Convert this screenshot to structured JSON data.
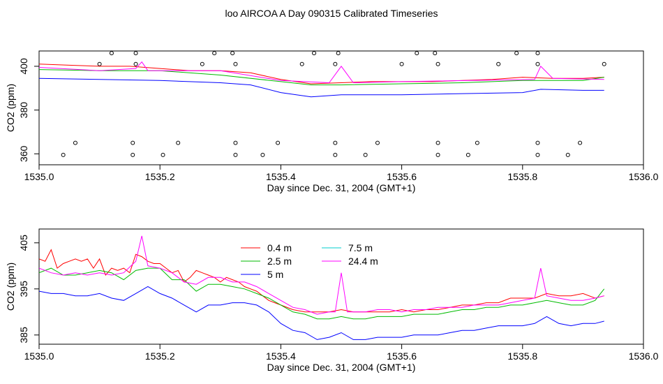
{
  "title": "loo AIRCOA A  Day 090315  Calibrated Timeseries",
  "colors": {
    "0.4 m": "#ff0000",
    "2.5 m": "#00bb00",
    "5 m": "#0000ff",
    "7.5 m": "#00cccc",
    "24.4 m": "#ff00ff",
    "points": "#000000"
  },
  "chart_data": [
    {
      "type": "line",
      "title": "loo AIRCOA A  Day 090315  Calibrated Timeseries",
      "xlabel": "Day since Dec. 31, 2004 (GMT+1)",
      "ylabel": "CO2 (ppm)",
      "xlim": [
        1535.0,
        1536.0
      ],
      "ylim": [
        355,
        407
      ],
      "xticks": [
        "1535.0",
        "1535.2",
        "1535.4",
        "1535.6",
        "1535.8",
        "1536.0"
      ],
      "yticks": [
        "360",
        "380",
        "400"
      ],
      "grid": false,
      "series": [
        {
          "name": "0.4 m",
          "color": "#ff0000",
          "x": [
            1535.0,
            1535.05,
            1535.1,
            1535.15,
            1535.2,
            1535.25,
            1535.3,
            1535.35,
            1535.4,
            1535.45,
            1535.5,
            1535.55,
            1535.6,
            1535.65,
            1535.7,
            1535.75,
            1535.8,
            1535.85,
            1535.9,
            1535.935
          ],
          "y": [
            401,
            400.5,
            400,
            400,
            399,
            398,
            398,
            397,
            394,
            392,
            392.5,
            393,
            393,
            393,
            393.5,
            394,
            395,
            394.5,
            394.5,
            395
          ]
        },
        {
          "name": "2.5 m",
          "color": "#00bb00",
          "x": [
            1535.0,
            1535.1,
            1535.2,
            1535.3,
            1535.4,
            1535.45,
            1535.5,
            1535.6,
            1535.7,
            1535.8,
            1535.9,
            1535.935
          ],
          "y": [
            398.5,
            398,
            398,
            396,
            393,
            391.5,
            391.5,
            392,
            392.5,
            393.5,
            393.5,
            395
          ]
        },
        {
          "name": "24.4 m",
          "color": "#ff00ff",
          "x": [
            1535.0,
            1535.1,
            1535.16,
            1535.17,
            1535.18,
            1535.3,
            1535.4,
            1535.48,
            1535.5,
            1535.52,
            1535.6,
            1535.82,
            1535.83,
            1535.85,
            1535.935
          ],
          "y": [
            399.5,
            398,
            399,
            402,
            398,
            398,
            393.5,
            392.5,
            400,
            392.5,
            393,
            394,
            400,
            394.5,
            394
          ]
        },
        {
          "name": "5 m",
          "color": "#0000ff",
          "x": [
            1535.0,
            1535.1,
            1535.2,
            1535.3,
            1535.35,
            1535.4,
            1535.45,
            1535.5,
            1535.6,
            1535.7,
            1535.8,
            1535.83,
            1535.9,
            1535.935
          ],
          "y": [
            394.5,
            394,
            393.5,
            392.5,
            391.5,
            388,
            386,
            387,
            387,
            387.5,
            388,
            389.5,
            389,
            389
          ]
        }
      ],
      "scatter_points": {
        "color": "#000000",
        "x": [
          1535.12,
          1535.16,
          1535.29,
          1535.32,
          1535.455,
          1535.495,
          1535.625,
          1535.655,
          1535.79,
          1535.825,
          1535.1,
          1535.16,
          1535.27,
          1535.325,
          1535.435,
          1535.49,
          1535.6,
          1535.66,
          1535.76,
          1535.825,
          1535.935,
          1535.06,
          1535.155,
          1535.23,
          1535.325,
          1535.395,
          1535.49,
          1535.56,
          1535.66,
          1535.725,
          1535.825,
          1535.895,
          1535.04,
          1535.155,
          1535.205,
          1535.325,
          1535.37,
          1535.49,
          1535.54,
          1535.66,
          1535.71,
          1535.825,
          1535.875
        ],
        "y": [
          406,
          406,
          406,
          406,
          406,
          406,
          406,
          406,
          406,
          406,
          401,
          401,
          401,
          401,
          401,
          401,
          401,
          401,
          401,
          401,
          401,
          365,
          365,
          365,
          365,
          365,
          365,
          365,
          365,
          365,
          365,
          365,
          359.5,
          359.5,
          359.5,
          359.5,
          359.5,
          359.5,
          359.5,
          359.5,
          359.5,
          359.5,
          359.5
        ]
      }
    },
    {
      "type": "line",
      "xlabel": "Day since Dec. 31, 2004 (GMT+1)",
      "ylabel": "CO2 (ppm)",
      "xlim": [
        1535.0,
        1536.0
      ],
      "ylim": [
        383,
        408
      ],
      "xticks": [
        "1535.0",
        "1535.2",
        "1535.4",
        "1535.6",
        "1535.8",
        "1536.0"
      ],
      "yticks": [
        "385",
        "395",
        "405"
      ],
      "grid": false,
      "legend": {
        "placement": "top-center",
        "entries": [
          "0.4 m",
          "2.5 m",
          "5 m",
          "7.5 m",
          "24.4 m"
        ]
      },
      "series": [
        {
          "name": "0.4 m",
          "color": "#ff0000",
          "x": [
            1535.0,
            1535.01,
            1535.02,
            1535.03,
            1535.04,
            1535.05,
            1535.06,
            1535.07,
            1535.08,
            1535.09,
            1535.1,
            1535.11,
            1535.12,
            1535.13,
            1535.14,
            1535.15,
            1535.16,
            1535.17,
            1535.18,
            1535.19,
            1535.2,
            1535.21,
            1535.22,
            1535.23,
            1535.24,
            1535.25,
            1535.26,
            1535.27,
            1535.28,
            1535.29,
            1535.3,
            1535.31,
            1535.32,
            1535.33,
            1535.34,
            1535.35,
            1535.36,
            1535.37,
            1535.38,
            1535.39,
            1535.4,
            1535.42,
            1535.44,
            1535.46,
            1535.48,
            1535.5,
            1535.52,
            1535.54,
            1535.56,
            1535.58,
            1535.6,
            1535.62,
            1535.64,
            1535.66,
            1535.68,
            1535.7,
            1535.72,
            1535.74,
            1535.76,
            1535.78,
            1535.8,
            1535.82,
            1535.84,
            1535.86,
            1535.88,
            1535.9,
            1535.92,
            1535.935
          ],
          "y": [
            401.5,
            401,
            403.5,
            399.5,
            400.5,
            401,
            401.5,
            401,
            401.5,
            399.5,
            401.5,
            398,
            399.5,
            399,
            399.5,
            398.5,
            402.5,
            402,
            401,
            400.5,
            400.5,
            399.5,
            398.5,
            399,
            396.5,
            397.5,
            399,
            398.5,
            398,
            397.5,
            396.5,
            397.5,
            397,
            396.5,
            395.5,
            395,
            394.5,
            393.5,
            392.5,
            392,
            391.5,
            390.5,
            390,
            390,
            390,
            390.5,
            390,
            390,
            390,
            390,
            390.5,
            390,
            390.5,
            390.5,
            391,
            391.5,
            391.5,
            392,
            392,
            393,
            393,
            393,
            394,
            393.5,
            393.5,
            394,
            393,
            393.5
          ]
        },
        {
          "name": "2.5 m",
          "color": "#00bb00",
          "x": [
            1535.0,
            1535.02,
            1535.04,
            1535.06,
            1535.08,
            1535.1,
            1535.12,
            1535.14,
            1535.16,
            1535.18,
            1535.2,
            1535.22,
            1535.24,
            1535.26,
            1535.28,
            1535.3,
            1535.32,
            1535.34,
            1535.36,
            1535.38,
            1535.4,
            1535.42,
            1535.44,
            1535.46,
            1535.48,
            1535.5,
            1535.52,
            1535.54,
            1535.56,
            1535.58,
            1535.6,
            1535.62,
            1535.64,
            1535.66,
            1535.68,
            1535.7,
            1535.72,
            1535.74,
            1535.76,
            1535.78,
            1535.8,
            1535.82,
            1535.84,
            1535.86,
            1535.88,
            1535.9,
            1535.92,
            1535.935
          ],
          "y": [
            398.5,
            399.5,
            398,
            398,
            398.5,
            399,
            398.5,
            397,
            399,
            399.5,
            399.5,
            397,
            397,
            394.5,
            396,
            396,
            395.5,
            395,
            394,
            393,
            391.5,
            390,
            389.5,
            388.5,
            388.5,
            389,
            388.5,
            388.5,
            389,
            389,
            389,
            389.5,
            389.5,
            389.5,
            390,
            390.5,
            390.5,
            391,
            391,
            391.5,
            391.5,
            392,
            392.5,
            392,
            391.5,
            391.5,
            392.5,
            395
          ]
        },
        {
          "name": "5 m",
          "color": "#0000ff",
          "x": [
            1535.0,
            1535.02,
            1535.04,
            1535.06,
            1535.08,
            1535.1,
            1535.12,
            1535.14,
            1535.16,
            1535.18,
            1535.2,
            1535.22,
            1535.24,
            1535.26,
            1535.28,
            1535.3,
            1535.32,
            1535.34,
            1535.36,
            1535.38,
            1535.4,
            1535.42,
            1535.44,
            1535.46,
            1535.48,
            1535.5,
            1535.52,
            1535.54,
            1535.56,
            1535.58,
            1535.6,
            1535.62,
            1535.64,
            1535.66,
            1535.68,
            1535.7,
            1535.72,
            1535.74,
            1535.76,
            1535.78,
            1535.8,
            1535.82,
            1535.84,
            1535.86,
            1535.88,
            1535.9,
            1535.92,
            1535.935
          ],
          "y": [
            394.5,
            394,
            394,
            393.5,
            393.5,
            394,
            393,
            392.5,
            394,
            395.5,
            394,
            393,
            391.5,
            390,
            391.5,
            391.5,
            392,
            392,
            391.5,
            390,
            387.5,
            386,
            385.5,
            384,
            384.5,
            385.5,
            384,
            384,
            384.5,
            384.5,
            384.5,
            385,
            385,
            385,
            385.5,
            386,
            386,
            386.5,
            387,
            387,
            387,
            387.5,
            389,
            387.5,
            387,
            387.5,
            387.5,
            388
          ]
        },
        {
          "name": "7.5 m",
          "color": "#00cccc",
          "x": [],
          "y": []
        },
        {
          "name": "24.4 m",
          "color": "#ff00ff",
          "x": [
            1535.0,
            1535.02,
            1535.04,
            1535.06,
            1535.08,
            1535.1,
            1535.12,
            1535.14,
            1535.16,
            1535.17,
            1535.18,
            1535.2,
            1535.22,
            1535.24,
            1535.26,
            1535.28,
            1535.3,
            1535.32,
            1535.34,
            1535.36,
            1535.38,
            1535.4,
            1535.42,
            1535.44,
            1535.46,
            1535.48,
            1535.49,
            1535.5,
            1535.51,
            1535.52,
            1535.54,
            1535.56,
            1535.58,
            1535.6,
            1535.62,
            1535.64,
            1535.66,
            1535.68,
            1535.7,
            1535.72,
            1535.74,
            1535.76,
            1535.78,
            1535.8,
            1535.82,
            1535.83,
            1535.84,
            1535.86,
            1535.88,
            1535.9,
            1535.92,
            1535.935
          ],
          "y": [
            399.5,
            398.5,
            398,
            398.5,
            398,
            398.5,
            398,
            398.5,
            401,
            406.5,
            400,
            399.5,
            398.5,
            396.5,
            396,
            397.5,
            397.5,
            396.5,
            396.5,
            395.5,
            394,
            392.5,
            391,
            390.5,
            389.5,
            390,
            390,
            398.5,
            390,
            390,
            390,
            390.5,
            390.5,
            390,
            390.5,
            390.5,
            391,
            391,
            391,
            391.5,
            391.5,
            391.5,
            392,
            392.5,
            393,
            399.5,
            393.5,
            393,
            392.5,
            392.5,
            393,
            393.5
          ]
        }
      ]
    }
  ]
}
